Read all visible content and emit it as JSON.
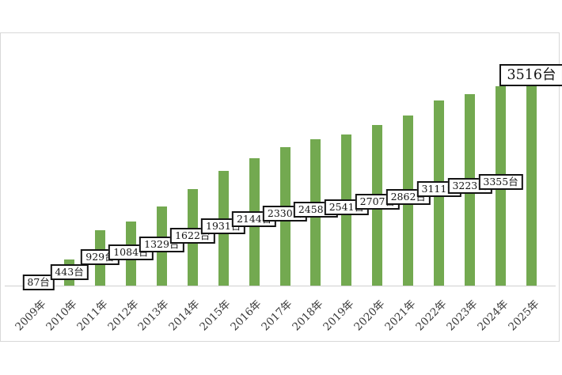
{
  "chart_data": {
    "type": "bar",
    "title": "",
    "unit": "台",
    "categories": [
      "2009年",
      "2010年",
      "2011年",
      "2012年",
      "2013年",
      "2014年",
      "2015年",
      "2016年",
      "2017年",
      "2018年",
      "2019年",
      "2020年",
      "2021年",
      "2022年",
      "2023年",
      "2024年",
      "2025年"
    ],
    "values": [
      87,
      443,
      929,
      1084,
      1329,
      1622,
      1931,
      2144,
      2330,
      2458,
      2541,
      2707,
      2862,
      3111,
      3223,
      3355,
      3516
    ],
    "labels": [
      "87台",
      "443台",
      "929台",
      "1084台",
      "1329台",
      "1622台",
      "1931台",
      "2144台",
      "2330台",
      "2458台",
      "2541台",
      "2707台",
      "2862台",
      "3111台",
      "3223台",
      "3355台",
      "3516台"
    ],
    "bar_color": "#73a950",
    "axis_line_color": "#cfcfcf",
    "panel_border_color": "#d8d8d8",
    "label_box_border_color": "#141414",
    "label_box_background": "#ffffff",
    "label_text_color": "#141414",
    "x_label_color": "#3a3a3a",
    "ylim": [
      0,
      3750
    ],
    "grid": false,
    "legend": false,
    "highlight_last_label": true,
    "x_labels_rotated_degrees": -45
  }
}
